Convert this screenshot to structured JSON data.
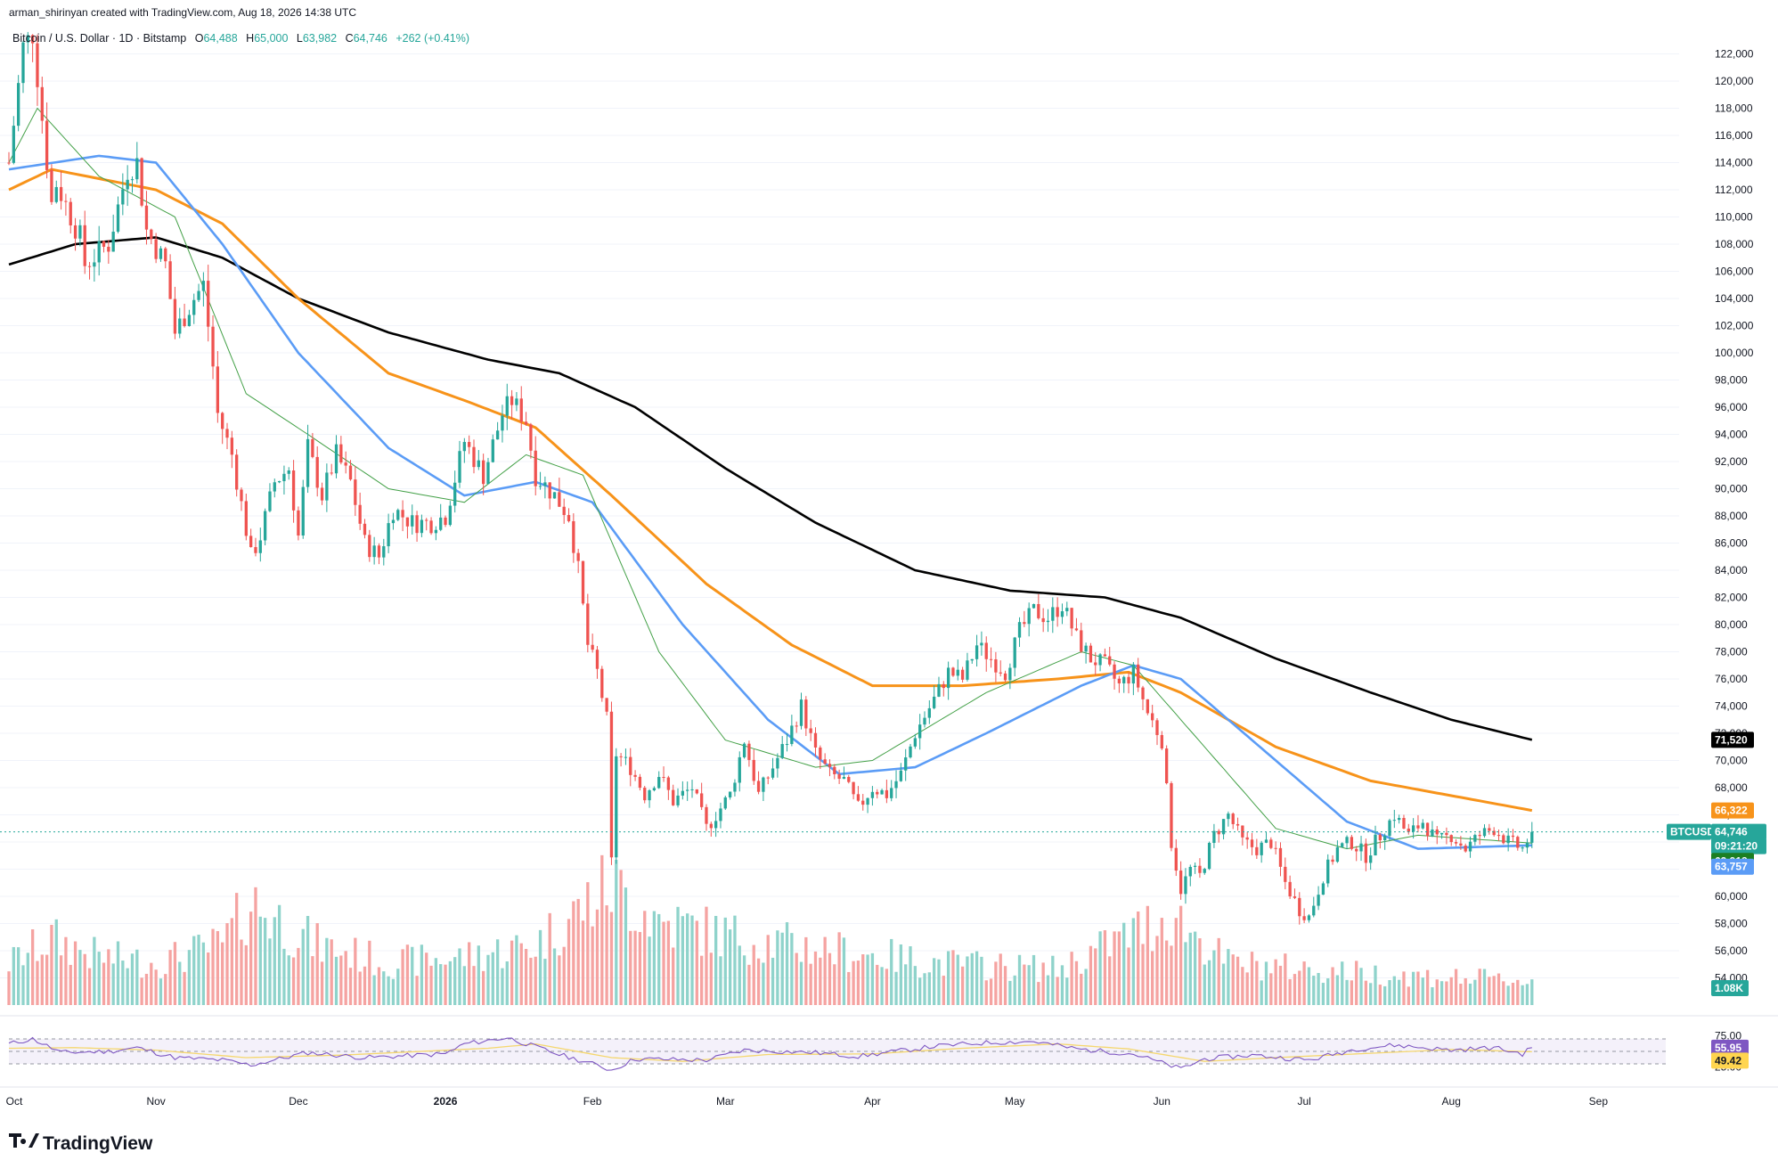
{
  "attribution": "arman_shirinyan created with TradingView.com, Aug 18, 2026 14:38 UTC",
  "symbol": {
    "name": "Bitcoin / U.S. Dollar",
    "interval": "1D",
    "exchange": "Bitstamp",
    "open_label": "O",
    "open": "64,488",
    "high_label": "H",
    "high": "65,000",
    "low_label": "L",
    "low": "63,982",
    "close_label": "C",
    "close": "64,746",
    "change": "+262 (+0.41%)"
  },
  "price_axis": {
    "ticks": [
      "122,000",
      "120,000",
      "118,000",
      "116,000",
      "114,000",
      "112,000",
      "110,000",
      "108,000",
      "106,000",
      "104,000",
      "102,000",
      "100,000",
      "98,000",
      "96,000",
      "94,000",
      "92,000",
      "90,000",
      "88,000",
      "86,000",
      "84,000",
      "82,000",
      "80,000",
      "78,000",
      "76,000",
      "74,000",
      "72,000",
      "70,000",
      "68,000",
      "66,000",
      "64,000",
      "62,000",
      "60,000",
      "58,000",
      "56,000",
      "54,000"
    ],
    "tick_values": [
      122000,
      120000,
      118000,
      116000,
      114000,
      112000,
      110000,
      108000,
      106000,
      104000,
      102000,
      100000,
      98000,
      96000,
      94000,
      92000,
      90000,
      88000,
      86000,
      84000,
      82000,
      80000,
      78000,
      76000,
      74000,
      72000,
      70000,
      68000,
      66000,
      64000,
      62000,
      60000,
      58000,
      56000,
      54000
    ],
    "range": [
      52000,
      124000
    ]
  },
  "price_labels": {
    "ma200": {
      "value": 71520,
      "text": "71,520",
      "color": "#000000"
    },
    "ma100": {
      "value": 66322,
      "text": "66,322",
      "color": "#f7931a"
    },
    "symbol_tag": "BTCUSD",
    "last": {
      "value": 64746,
      "text": "64,746",
      "countdown": "09:21:20",
      "color": "#26a69a"
    },
    "ma20": {
      "value": 63918,
      "text": "63,918",
      "color": "#1b7f22"
    },
    "ma50": {
      "value": 63757,
      "text": "63,757",
      "color": "#5b9cf6"
    },
    "volume": {
      "text": "1.08K",
      "color": "#26a69a"
    }
  },
  "rsi_axis": {
    "ticks": [
      "75.00",
      "25.00"
    ],
    "tick_values": [
      75,
      25
    ],
    "value": {
      "text": "55.95",
      "color": "#7e57c2"
    },
    "ma": {
      "text": "49.42",
      "color": "#ffd54f"
    },
    "range": [
      0,
      100
    ],
    "band": [
      30,
      70
    ]
  },
  "time_axis": {
    "labels": [
      "Oct",
      "Nov",
      "Dec",
      "2026",
      "Feb",
      "Mar",
      "Apr",
      "May",
      "Jun",
      "Jul",
      "Aug",
      "Sep"
    ],
    "bold": [
      false,
      false,
      false,
      true,
      false,
      false,
      false,
      false,
      false,
      false,
      false,
      false
    ]
  },
  "colors": {
    "up": "#26a69a",
    "down": "#ef5350",
    "vol_up": "#8fd3cb",
    "vol_down": "#f5a3a1",
    "ma20": "#43a047",
    "ma50": "#5b9cf6",
    "ma100": "#f7931a",
    "ma200": "#000000",
    "rsi": "#7e57c2",
    "rsi_ma": "#f5d76e"
  },
  "logo": "TradingView",
  "chart_data": {
    "type": "candlestick",
    "title": "Bitcoin / U.S. Dollar · 1D · Bitstamp",
    "x_range": [
      "2025-10-01",
      "2026-09-03"
    ],
    "ylim": [
      52000,
      124000
    ],
    "note_series": "Daily closes (approx.) with moving averages",
    "anchors": [
      [
        "2025-10-01",
        114000
      ],
      [
        "2025-10-04",
        122500
      ],
      [
        "2025-10-06",
        123500
      ],
      [
        "2025-10-10",
        111000
      ],
      [
        "2025-10-11",
        112500
      ],
      [
        "2025-10-16",
        108500
      ],
      [
        "2025-10-17",
        106500
      ],
      [
        "2025-10-22",
        108000
      ],
      [
        "2025-10-26",
        113500
      ],
      [
        "2025-10-28",
        114000
      ],
      [
        "2025-10-30",
        109000
      ],
      [
        "2025-11-03",
        106500
      ],
      [
        "2025-11-05",
        101500
      ],
      [
        "2025-11-09",
        104000
      ],
      [
        "2025-11-11",
        105000
      ],
      [
        "2025-11-13",
        99000
      ],
      [
        "2025-11-14",
        95500
      ],
      [
        "2025-11-17",
        92500
      ],
      [
        "2025-11-20",
        87000
      ],
      [
        "2025-11-21",
        85000
      ],
      [
        "2025-11-23",
        86500
      ],
      [
        "2025-11-26",
        90500
      ],
      [
        "2025-11-29",
        91500
      ],
      [
        "2025-12-01",
        86500
      ],
      [
        "2025-12-03",
        93000
      ],
      [
        "2025-12-06",
        89500
      ],
      [
        "2025-12-09",
        92500
      ],
      [
        "2025-12-12",
        90500
      ],
      [
        "2025-12-15",
        86000
      ],
      [
        "2025-12-18",
        85000
      ],
      [
        "2025-12-21",
        88500
      ],
      [
        "2025-12-25",
        87500
      ],
      [
        "2025-12-29",
        87500
      ],
      [
        "2026-01-01",
        88000
      ],
      [
        "2026-01-05",
        93500
      ],
      [
        "2026-01-09",
        91000
      ],
      [
        "2026-01-13",
        95500
      ],
      [
        "2026-01-15",
        96500
      ],
      [
        "2026-01-18",
        95000
      ],
      [
        "2026-01-20",
        91000
      ],
      [
        "2026-01-24",
        89500
      ],
      [
        "2026-01-27",
        88000
      ],
      [
        "2026-01-29",
        84000
      ],
      [
        "2026-01-31",
        78500
      ],
      [
        "2026-02-02",
        76500
      ],
      [
        "2026-02-04",
        73000
      ],
      [
        "2026-02-05",
        62500
      ],
      [
        "2026-02-06",
        70500
      ],
      [
        "2026-02-09",
        69500
      ],
      [
        "2026-02-12",
        67500
      ],
      [
        "2026-02-15",
        69000
      ],
      [
        "2026-02-18",
        67000
      ],
      [
        "2026-02-22",
        68000
      ],
      [
        "2026-02-25",
        65000
      ],
      [
        "2026-02-28",
        66500
      ],
      [
        "2026-03-02",
        67500
      ],
      [
        "2026-03-05",
        71500
      ],
      [
        "2026-03-08",
        67500
      ],
      [
        "2026-03-11",
        69500
      ],
      [
        "2026-03-14",
        71500
      ],
      [
        "2026-03-17",
        74000
      ],
      [
        "2026-03-20",
        70500
      ],
      [
        "2026-03-23",
        69000
      ],
      [
        "2026-03-26",
        68500
      ],
      [
        "2026-03-29",
        66500
      ],
      [
        "2026-04-01",
        68000
      ],
      [
        "2026-04-04",
        67500
      ],
      [
        "2026-04-07",
        69000
      ],
      [
        "2026-04-10",
        72000
      ],
      [
        "2026-04-14",
        74500
      ],
      [
        "2026-04-17",
        76500
      ],
      [
        "2026-04-20",
        76000
      ],
      [
        "2026-04-23",
        78500
      ],
      [
        "2026-04-26",
        77500
      ],
      [
        "2026-04-29",
        76500
      ],
      [
        "2026-05-02",
        79500
      ],
      [
        "2026-05-05",
        81000
      ],
      [
        "2026-05-08",
        80500
      ],
      [
        "2026-05-11",
        81500
      ],
      [
        "2026-05-14",
        79000
      ],
      [
        "2026-05-17",
        77500
      ],
      [
        "2026-05-20",
        77000
      ],
      [
        "2026-05-23",
        75500
      ],
      [
        "2026-05-26",
        76500
      ],
      [
        "2026-05-29",
        73500
      ],
      [
        "2026-06-01",
        71500
      ],
      [
        "2026-06-03",
        64000
      ],
      [
        "2026-06-05",
        60500
      ],
      [
        "2026-06-07",
        62000
      ],
      [
        "2026-06-09",
        61500
      ],
      [
        "2026-06-12",
        64500
      ],
      [
        "2026-06-15",
        66000
      ],
      [
        "2026-06-18",
        64000
      ],
      [
        "2026-06-21",
        63500
      ],
      [
        "2026-06-24",
        64000
      ],
      [
        "2026-06-27",
        61000
      ],
      [
        "2026-06-30",
        59000
      ],
      [
        "2026-07-02",
        58500
      ],
      [
        "2026-07-05",
        61500
      ],
      [
        "2026-07-08",
        63500
      ],
      [
        "2026-07-11",
        64000
      ],
      [
        "2026-07-14",
        63000
      ],
      [
        "2026-07-17",
        64500
      ],
      [
        "2026-07-20",
        66000
      ],
      [
        "2026-07-23",
        64500
      ],
      [
        "2026-07-26",
        65500
      ],
      [
        "2026-07-29",
        64000
      ],
      [
        "2026-08-01",
        64500
      ],
      [
        "2026-08-04",
        63500
      ],
      [
        "2026-08-07",
        64500
      ],
      [
        "2026-08-10",
        65000
      ],
      [
        "2026-08-13",
        64000
      ],
      [
        "2026-08-16",
        63500
      ],
      [
        "2026-08-18",
        64746
      ]
    ],
    "ma20_anchors": [
      [
        "2025-10-01",
        114000
      ],
      [
        "2025-10-07",
        118000
      ],
      [
        "2025-10-20",
        113000
      ],
      [
        "2025-11-05",
        110000
      ],
      [
        "2025-11-20",
        97000
      ],
      [
        "2025-12-03",
        94000
      ],
      [
        "2025-12-20",
        90000
      ],
      [
        "2026-01-05",
        89000
      ],
      [
        "2026-01-18",
        92500
      ],
      [
        "2026-01-30",
        91000
      ],
      [
        "2026-02-15",
        78000
      ],
      [
        "2026-03-01",
        71500
      ],
      [
        "2026-03-20",
        69500
      ],
      [
        "2026-04-01",
        70000
      ],
      [
        "2026-04-25",
        75000
      ],
      [
        "2026-05-15",
        78000
      ],
      [
        "2026-05-26",
        77000
      ],
      [
        "2026-06-10",
        71000
      ],
      [
        "2026-06-25",
        65000
      ],
      [
        "2026-07-10",
        63500
      ],
      [
        "2026-07-25",
        64500
      ],
      [
        "2026-08-18",
        63918
      ]
    ],
    "ma50_anchors": [
      [
        "2025-10-01",
        113500
      ],
      [
        "2025-10-20",
        114500
      ],
      [
        "2025-11-01",
        114000
      ],
      [
        "2025-11-15",
        108000
      ],
      [
        "2025-12-01",
        100000
      ],
      [
        "2025-12-20",
        93000
      ],
      [
        "2026-01-05",
        89500
      ],
      [
        "2026-01-20",
        90500
      ],
      [
        "2026-02-01",
        89000
      ],
      [
        "2026-02-20",
        80000
      ],
      [
        "2026-03-10",
        73000
      ],
      [
        "2026-03-25",
        69000
      ],
      [
        "2026-04-10",
        69500
      ],
      [
        "2026-04-25",
        72000
      ],
      [
        "2026-05-15",
        75500
      ],
      [
        "2026-05-26",
        77000
      ],
      [
        "2026-06-05",
        76000
      ],
      [
        "2026-06-25",
        70000
      ],
      [
        "2026-07-10",
        65500
      ],
      [
        "2026-07-25",
        63500
      ],
      [
        "2026-08-18",
        63757
      ]
    ],
    "ma100_anchors": [
      [
        "2025-10-01",
        112000
      ],
      [
        "2025-10-10",
        113500
      ],
      [
        "2025-11-01",
        112000
      ],
      [
        "2025-11-15",
        109500
      ],
      [
        "2025-12-01",
        104000
      ],
      [
        "2025-12-20",
        98500
      ],
      [
        "2026-01-05",
        96500
      ],
      [
        "2026-01-20",
        94500
      ],
      [
        "2026-02-05",
        89500
      ],
      [
        "2026-02-25",
        83000
      ],
      [
        "2026-03-15",
        78500
      ],
      [
        "2026-04-01",
        75500
      ],
      [
        "2026-04-20",
        75500
      ],
      [
        "2026-05-10",
        76000
      ],
      [
        "2026-05-25",
        76500
      ],
      [
        "2026-06-05",
        75000
      ],
      [
        "2026-06-25",
        71000
      ],
      [
        "2026-07-15",
        68500
      ],
      [
        "2026-08-18",
        66322
      ]
    ],
    "ma200_anchors": [
      [
        "2025-10-01",
        106500
      ],
      [
        "2025-10-15",
        108000
      ],
      [
        "2025-11-01",
        108500
      ],
      [
        "2025-11-15",
        107000
      ],
      [
        "2025-12-01",
        104000
      ],
      [
        "2025-12-20",
        101500
      ],
      [
        "2026-01-10",
        99500
      ],
      [
        "2026-01-25",
        98500
      ],
      [
        "2026-02-10",
        96000
      ],
      [
        "2026-03-01",
        91500
      ],
      [
        "2026-03-20",
        87500
      ],
      [
        "2026-04-10",
        84000
      ],
      [
        "2026-04-30",
        82500
      ],
      [
        "2026-05-20",
        82000
      ],
      [
        "2026-06-05",
        80500
      ],
      [
        "2026-06-25",
        77500
      ],
      [
        "2026-07-15",
        75000
      ],
      [
        "2026-08-01",
        73000
      ],
      [
        "2026-08-18",
        71520
      ]
    ],
    "rsi_anchors": [
      [
        "2025-10-01",
        62
      ],
      [
        "2025-10-06",
        70
      ],
      [
        "2025-10-12",
        48
      ],
      [
        "2025-10-22",
        50
      ],
      [
        "2025-10-28",
        56
      ],
      [
        "2025-11-05",
        40
      ],
      [
        "2025-11-15",
        36
      ],
      [
        "2025-11-21",
        28
      ],
      [
        "2025-12-03",
        48
      ],
      [
        "2025-12-15",
        40
      ],
      [
        "2026-01-01",
        46
      ],
      [
        "2026-01-05",
        62
      ],
      [
        "2026-01-14",
        72
      ],
      [
        "2026-01-25",
        45
      ],
      [
        "2026-02-01",
        30
      ],
      [
        "2026-02-05",
        20
      ],
      [
        "2026-02-10",
        38
      ],
      [
        "2026-02-25",
        36
      ],
      [
        "2026-03-05",
        52
      ],
      [
        "2026-03-20",
        48
      ],
      [
        "2026-03-29",
        42
      ],
      [
        "2026-04-14",
        58
      ],
      [
        "2026-04-25",
        64
      ],
      [
        "2026-05-05",
        66
      ],
      [
        "2026-05-14",
        54
      ],
      [
        "2026-05-26",
        46
      ],
      [
        "2026-06-05",
        22
      ],
      [
        "2026-06-10",
        38
      ],
      [
        "2026-06-20",
        44
      ],
      [
        "2026-07-02",
        36
      ],
      [
        "2026-07-12",
        54
      ],
      [
        "2026-07-20",
        60
      ],
      [
        "2026-08-01",
        52
      ],
      [
        "2026-08-10",
        56
      ],
      [
        "2026-08-16",
        46
      ],
      [
        "2026-08-18",
        55.95
      ]
    ],
    "rsi_ma_anchors": [
      [
        "2025-10-01",
        55
      ],
      [
        "2025-10-15",
        56
      ],
      [
        "2025-11-01",
        52
      ],
      [
        "2025-11-20",
        40
      ],
      [
        "2025-12-10",
        44
      ],
      [
        "2026-01-10",
        55
      ],
      [
        "2026-01-20",
        62
      ],
      [
        "2026-02-05",
        40
      ],
      [
        "2026-02-20",
        34
      ],
      [
        "2026-03-10",
        45
      ],
      [
        "2026-04-01",
        46
      ],
      [
        "2026-04-20",
        55
      ],
      [
        "2026-05-10",
        62
      ],
      [
        "2026-05-25",
        54
      ],
      [
        "2026-06-10",
        34
      ],
      [
        "2026-06-25",
        40
      ],
      [
        "2026-07-15",
        47
      ],
      [
        "2026-08-01",
        53
      ],
      [
        "2026-08-18",
        49.42
      ]
    ],
    "volume_anchors": [
      [
        "2025-10-01",
        0.35
      ],
      [
        "2025-10-10",
        0.55
      ],
      [
        "2025-10-20",
        0.4
      ],
      [
        "2025-11-01",
        0.35
      ],
      [
        "2025-11-15",
        0.5
      ],
      [
        "2025-11-21",
        0.85
      ],
      [
        "2025-12-05",
        0.5
      ],
      [
        "2025-12-20",
        0.35
      ],
      [
        "2026-01-05",
        0.4
      ],
      [
        "2026-01-20",
        0.5
      ],
      [
        "2026-02-05",
        1.0
      ],
      [
        "2026-02-15",
        0.7
      ],
      [
        "2026-03-05",
        0.55
      ],
      [
        "2026-03-25",
        0.45
      ],
      [
        "2026-04-15",
        0.35
      ],
      [
        "2026-05-10",
        0.3
      ],
      [
        "2026-06-03",
        0.75
      ],
      [
        "2026-06-15",
        0.35
      ],
      [
        "2026-07-01",
        0.3
      ],
      [
        "2026-07-20",
        0.25
      ],
      [
        "2026-08-18",
        0.2
      ]
    ]
  }
}
